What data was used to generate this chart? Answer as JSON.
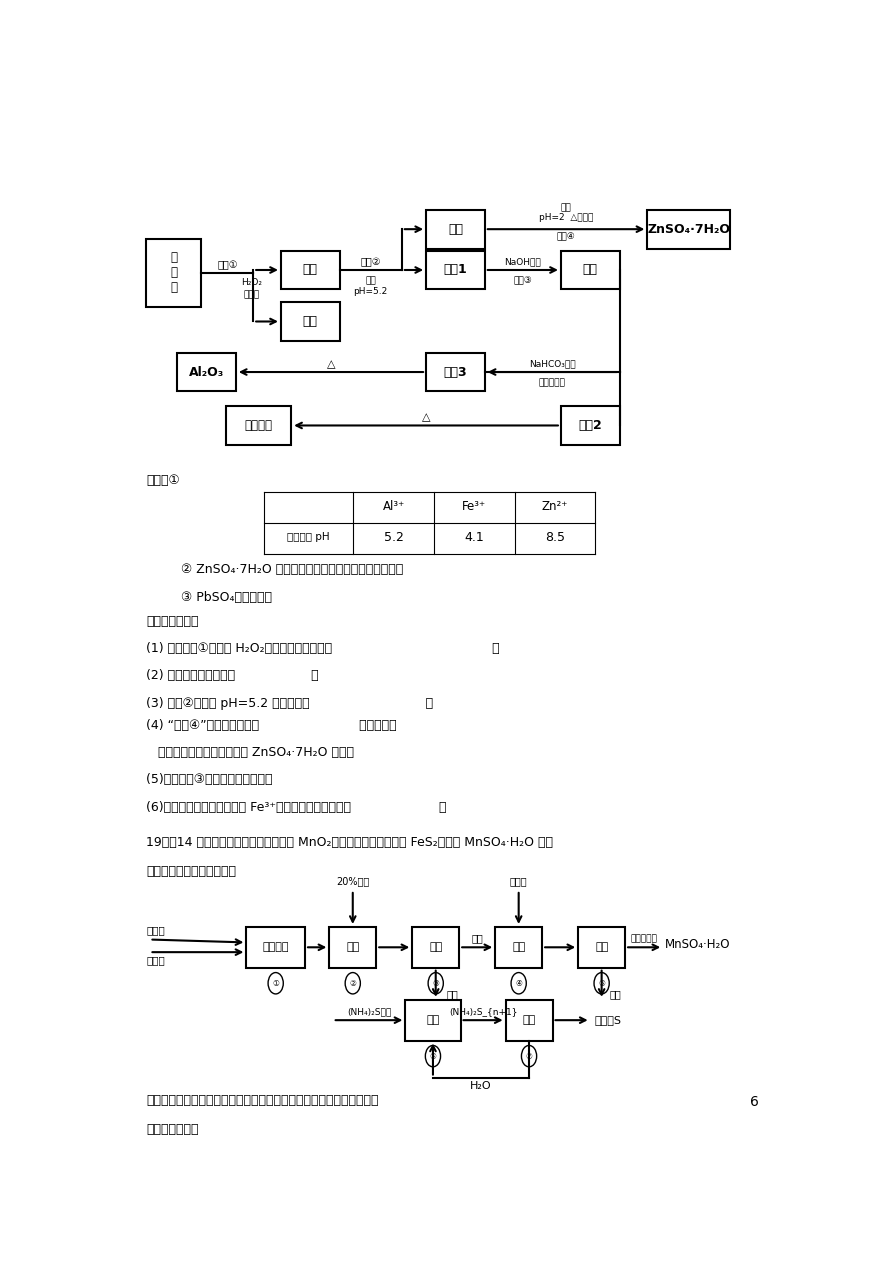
{
  "page_width": 8.92,
  "page_height": 12.62,
  "bg_color": "#ffffff",
  "page_number": "6",
  "known_items": [
    "② ZnSO₄·7H₂O 晶体易溶于水，易风化，难溶于酒精。",
    "③ PbSO₄难溶于水。"
  ],
  "questions_part1": [
    "回答下列问题：",
    "(1) 写出操作①中涉及 H₂O₂反应的离子方程式：                                        ；",
    "(2) 滤渣的主要成分是：                   ；",
    "(3) 操作②中调节 pH=5.2 的目的是：                             ；",
    "(4) “操作④”的具体操作为：                         ，过滤，用          ",
    "   洗浤晶体，干燥，即可得到 ZnSO₄·7H₂O 晶体；",
    "(5)写出操作③的反应离子方程式：                                          ",
    "(6)为判断确酸锤晶体是否有 Fe³⁺残留，请设计实验方案                      。"
  ],
  "question19_intro": "19、（14 分）一种用软锶矿（主要成分 MnO₂）和黄铁矿（主要成分 FeS₂）制取 MnSO₄·H₂O 并回",
  "question19_intro2": "收单质硫的工艺流程如下：",
  "known2": "已知：本实验条件下，高锴酸鯨溶液与硬酸锶溶液混合产生二氧化锶。",
  "answer2": "回答下列问题："
}
